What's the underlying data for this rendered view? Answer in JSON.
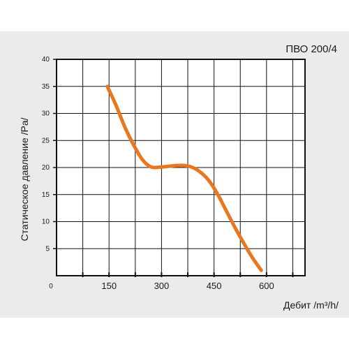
{
  "chart_data": {
    "type": "line",
    "title": "ПВО 200/4",
    "xlabel": "Дебит /m³/h/",
    "ylabel": "Статическое давление /Pa/",
    "xlim": [
      0,
      710
    ],
    "ylim": [
      0,
      40
    ],
    "x_ticks": [
      0,
      150,
      300,
      450,
      600
    ],
    "x_tick_labels": [
      "0",
      "150",
      "300",
      "450",
      "600"
    ],
    "y_ticks": [
      5,
      10,
      15,
      20,
      25,
      30,
      35,
      40
    ],
    "y_tick_labels": [
      "5",
      "10",
      "15",
      "20",
      "25",
      "30",
      "35",
      "40"
    ],
    "grid": true,
    "line_color": "#e8771f",
    "series": [
      {
        "x": [
          145,
          170,
          195,
          220,
          245,
          270,
          300,
          330,
          360,
          385,
          410,
          435,
          460,
          485,
          510,
          535,
          560,
          585
        ],
        "y": [
          35.0,
          31.5,
          27.5,
          24.2,
          21.5,
          20.1,
          20.1,
          20.3,
          20.4,
          20.1,
          19.2,
          17.6,
          15.1,
          12.0,
          8.9,
          6.0,
          3.3,
          1.0
        ]
      }
    ]
  }
}
